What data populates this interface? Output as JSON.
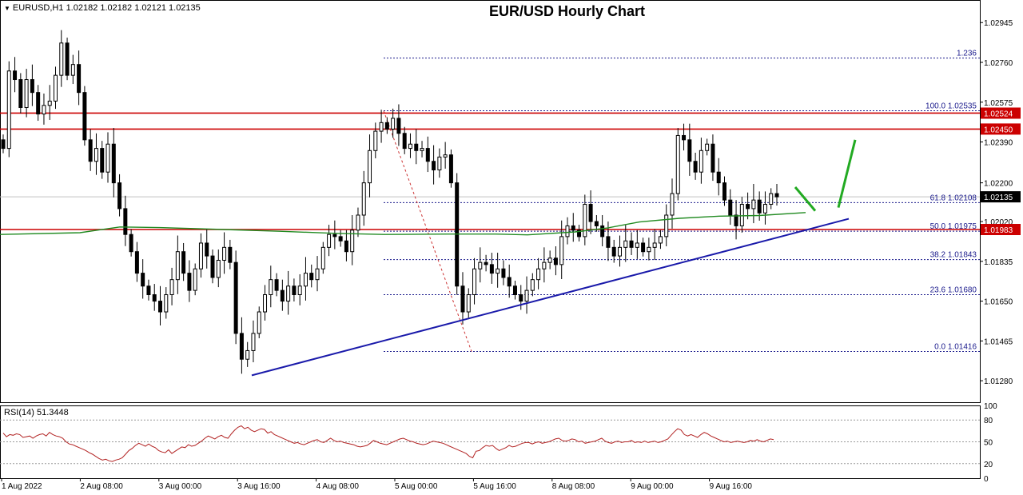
{
  "header": {
    "symbol": "EURUSD,H1",
    "ohlc": "1.02182 1.02182 1.02121 1.02135"
  },
  "chart_data": [
    {
      "type": "candlestick",
      "title": "EUR/USD Hourly Chart",
      "ylim": [
        1.0118,
        1.0305
      ],
      "y_ticks": [
        "1.02945",
        "1.02760",
        "1.02575",
        "1.02390",
        "1.02200",
        "1.02020",
        "1.01835",
        "1.01650",
        "1.01465",
        "1.01280"
      ],
      "x_ticks": [
        "1 Aug 2022",
        "2 Aug 08:00",
        "3 Aug 00:00",
        "3 Aug 16:00",
        "4 Aug 08:00",
        "5 Aug 00:00",
        "5 Aug 16:00",
        "8 Aug 08:00",
        "9 Aug 00:00",
        "9 Aug 16:00"
      ],
      "current_price": "1.02135",
      "horizontal_levels": [
        {
          "value": "1.02524",
          "color": "#cc0000"
        },
        {
          "value": "1.02450",
          "color": "#cc0000"
        },
        {
          "value": "1.01983",
          "color": "#cc0000"
        }
      ],
      "fibonacci": [
        {
          "label": "1.236",
          "price": 1.0278
        },
        {
          "label": "100.0 1.02535",
          "price": 1.02535
        },
        {
          "label": "61.8 1.02108",
          "price": 1.02108
        },
        {
          "label": "50.0 1.01975",
          "price": 1.01975
        },
        {
          "label": "38.2 1.01843",
          "price": 1.01843
        },
        {
          "label": "23.6 1.01680",
          "price": 1.0168
        },
        {
          "label": "0.0 1.01416",
          "price": 1.01416
        }
      ],
      "close_path": [
        1.0236,
        1.0272,
        1.0268,
        1.0255,
        1.0268,
        1.0262,
        1.0252,
        1.0256,
        1.0258,
        1.027,
        1.0285,
        1.027,
        1.0275,
        1.0262,
        1.024,
        1.023,
        1.0236,
        1.0225,
        1.0238,
        1.022,
        1.0208,
        1.0196,
        1.0188,
        1.0178,
        1.0172,
        1.0168,
        1.0165,
        1.016,
        1.0168,
        1.0175,
        1.0188,
        1.0178,
        1.017,
        1.018,
        1.0192,
        1.0186,
        1.0176,
        1.0184,
        1.019,
        1.0183,
        1.015,
        1.0138,
        1.0142,
        1.015,
        1.016,
        1.0168,
        1.0175,
        1.017,
        1.0165,
        1.0172,
        1.0168,
        1.0172,
        1.0178,
        1.0175,
        1.018,
        1.019,
        1.0196,
        1.0195,
        1.0193,
        1.0188,
        1.0198,
        1.0205,
        1.022,
        1.0235,
        1.0244,
        1.0248,
        1.0245,
        1.025,
        1.0243,
        1.0236,
        1.0238,
        1.0235,
        1.0236,
        1.023,
        1.0226,
        1.0232,
        1.0233,
        1.022,
        1.0172,
        1.016,
        1.0168,
        1.018,
        1.0183,
        1.0182,
        1.0178,
        1.018,
        1.0176,
        1.0172,
        1.0168,
        1.0165,
        1.017,
        1.0175,
        1.018,
        1.0183,
        1.0185,
        1.0182,
        1.0195,
        1.02,
        1.0198,
        1.0195,
        1.021,
        1.0202,
        1.02,
        1.0195,
        1.019,
        1.0186,
        1.019,
        1.0193,
        1.019,
        1.0192,
        1.0188,
        1.019,
        1.0192,
        1.0195,
        1.0205,
        1.0215,
        1.0242,
        1.024,
        1.023,
        1.0225,
        1.0235,
        1.0238,
        1.0225,
        1.022,
        1.0212,
        1.0205,
        1.02,
        1.021,
        1.0208,
        1.0212,
        1.0206,
        1.021,
        1.0215,
        1.02135
      ],
      "ma_points": [
        [
          0,
          1.0196
        ],
        [
          100,
          1.01968
        ],
        [
          150,
          1.01995
        ],
        [
          200,
          1.01992
        ],
        [
          280,
          1.01983
        ],
        [
          350,
          1.01975
        ],
        [
          420,
          1.01965
        ],
        [
          480,
          1.0196
        ],
        [
          560,
          1.01962
        ],
        [
          620,
          1.01962
        ],
        [
          660,
          1.01958
        ],
        [
          720,
          1.01972
        ],
        [
          760,
          1.0199
        ],
        [
          800,
          1.02018
        ],
        [
          850,
          1.02035
        ],
        [
          900,
          1.02045
        ],
        [
          950,
          1.02048
        ],
        [
          1008,
          1.02062
        ]
      ],
      "trendline": [
        [
          315,
          1.01305
        ],
        [
          1062,
          1.02033
        ]
      ],
      "fib_diagonal": [
        [
          480,
          1.02535
        ],
        [
          590,
          1.01416
        ]
      ],
      "projection": [
        [
          995,
          1.0218
        ],
        [
          1020,
          1.0207
        ],
        [
          1049,
          1.02085
        ],
        [
          1070,
          1.024
        ]
      ]
    },
    {
      "type": "line",
      "name": "RSI(14) 51.3448",
      "ylim": [
        0,
        100
      ],
      "y_ticks": [
        "100",
        "80",
        "50",
        "20",
        "0"
      ],
      "levels": [
        80,
        50,
        20
      ],
      "values": [
        62,
        57,
        60,
        59,
        61,
        60,
        56,
        57,
        58,
        55,
        58,
        60,
        61,
        58,
        63,
        60,
        58,
        57,
        55,
        50,
        47,
        46,
        44,
        42,
        40,
        38,
        35,
        33,
        30,
        27,
        25,
        26,
        24,
        23,
        25,
        26,
        28,
        33,
        38,
        41,
        45,
        48,
        46,
        44,
        47,
        44,
        42,
        38,
        36,
        35,
        39,
        34,
        37,
        40,
        43,
        42,
        46,
        44,
        45,
        48,
        51,
        55,
        58,
        56,
        54,
        57,
        59,
        56,
        55,
        61,
        66,
        70,
        72,
        68,
        70,
        66,
        64,
        66,
        68,
        67,
        62,
        64,
        60,
        58,
        56,
        54,
        52,
        50,
        48,
        49,
        47,
        46,
        48,
        50,
        52,
        53,
        50,
        49,
        52,
        55,
        52,
        50,
        51,
        49,
        48,
        47,
        46,
        44,
        43,
        44,
        45,
        48,
        52,
        50,
        48,
        47,
        46,
        48,
        50,
        52,
        54,
        55,
        53,
        51,
        50,
        48,
        47,
        46,
        47,
        49,
        51,
        50,
        49,
        48,
        46,
        44,
        42,
        40,
        38,
        36,
        34,
        30,
        28,
        37,
        38,
        42,
        45,
        44,
        45,
        41,
        38,
        40,
        42,
        45,
        43,
        44,
        46,
        48,
        49,
        49,
        47,
        49,
        50,
        48,
        49,
        50,
        52,
        54,
        55,
        52,
        51,
        52,
        54,
        53,
        50,
        51,
        48,
        49,
        50,
        51,
        53,
        55,
        51,
        49,
        48,
        50,
        51,
        49,
        50,
        50,
        52,
        49,
        50,
        49,
        51,
        49,
        50,
        51,
        49,
        50,
        52,
        54,
        59,
        64,
        68,
        66,
        60,
        58,
        60,
        58,
        56,
        60,
        63,
        61,
        58,
        56,
        54,
        52,
        50,
        51,
        49,
        50,
        51,
        50,
        49,
        50,
        52,
        51,
        53,
        51,
        50,
        52,
        54,
        53
      ]
    }
  ]
}
